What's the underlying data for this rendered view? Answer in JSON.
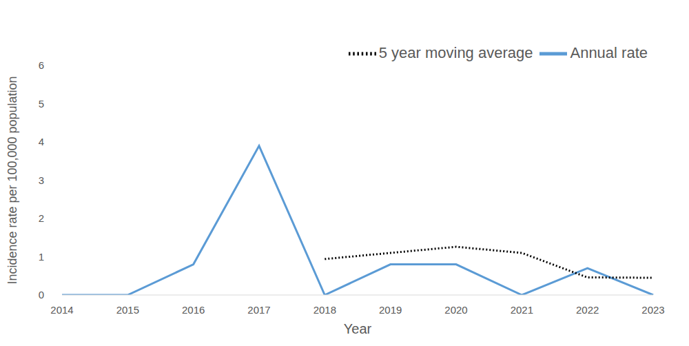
{
  "chart_data": {
    "type": "line",
    "x_label": "Year",
    "y_label": "Incidence rate per 100,000 population",
    "categories": [
      "2014",
      "2015",
      "2016",
      "2017",
      "2018",
      "2019",
      "2020",
      "2021",
      "2022",
      "2023"
    ],
    "series": [
      {
        "name": "Annual rate",
        "color": "#5b9bd5",
        "line_style": "solid",
        "values": [
          0,
          0,
          0.8,
          3.9,
          0,
          0.8,
          0.8,
          0,
          0.7,
          0
        ]
      },
      {
        "name": "5 year moving average",
        "color": "#000000",
        "line_style": "dotted",
        "values": [
          null,
          null,
          null,
          null,
          0.94,
          1.1,
          1.26,
          1.1,
          0.46,
          0.45
        ]
      }
    ],
    "ylim": [
      0,
      6
    ],
    "yticks": [
      0,
      1,
      2,
      3,
      4,
      5,
      6
    ],
    "grid": false,
    "legend": "top"
  }
}
